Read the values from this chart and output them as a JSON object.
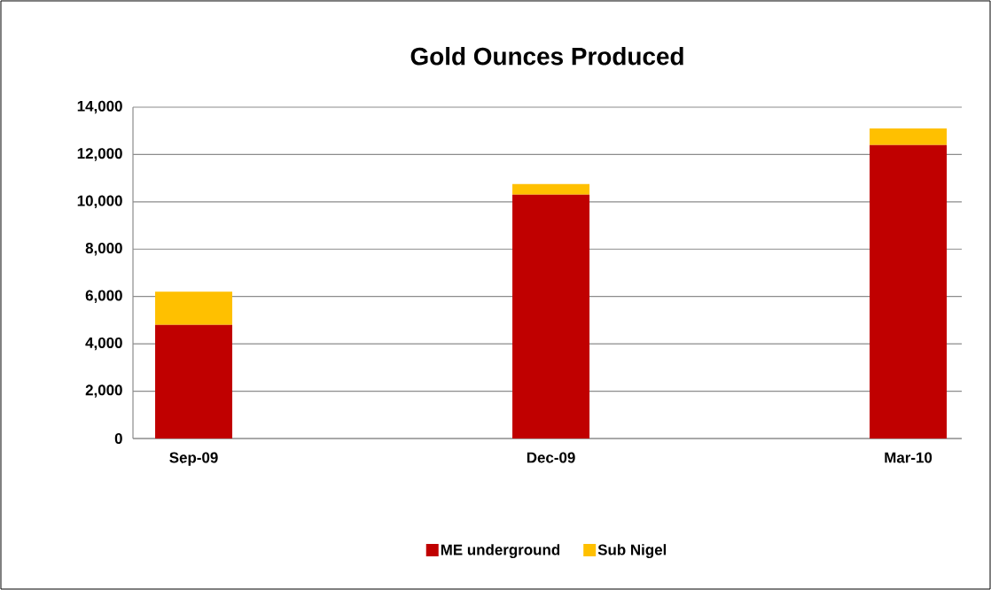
{
  "chart_data": {
    "type": "bar",
    "title": "Gold Ounces Produced",
    "categories": [
      "Sep-09",
      "Dec-09",
      "Mar-10"
    ],
    "series": [
      {
        "name": "ME underground",
        "color": "#c00000",
        "values": [
          4800,
          10300,
          12400
        ]
      },
      {
        "name": "Sub Nigel",
        "color": "#ffc000",
        "values": [
          1400,
          450,
          700
        ]
      }
    ],
    "stacked": true,
    "ylim": [
      0,
      14000
    ],
    "yticks": [
      {
        "value": 0,
        "label": "0"
      },
      {
        "value": 2000,
        "label": "2,000"
      },
      {
        "value": 4000,
        "label": "4,000"
      },
      {
        "value": 6000,
        "label": "6,000"
      },
      {
        "value": 8000,
        "label": "8,000"
      },
      {
        "value": 10000,
        "label": "10,000"
      },
      {
        "value": 12000,
        "label": "12,000"
      },
      {
        "value": 14000,
        "label": "14,000"
      }
    ],
    "grid": "y",
    "legend": "bottom"
  }
}
